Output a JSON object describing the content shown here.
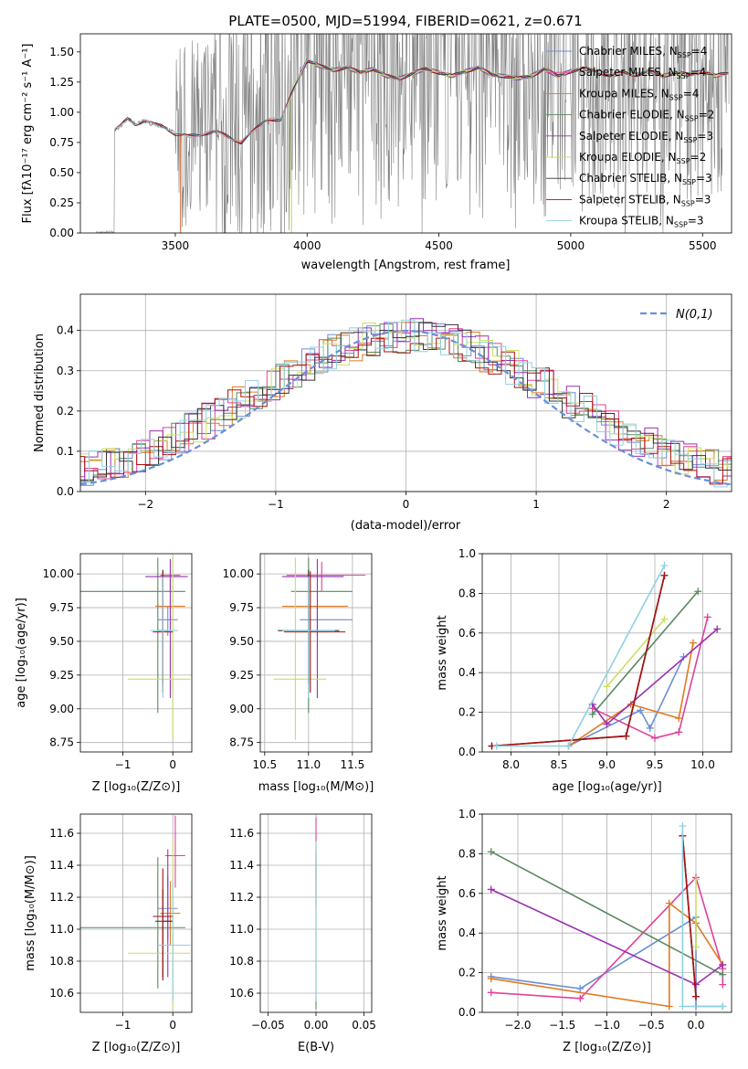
{
  "figure": {
    "title": "PLATE=0500, MJD=51994, FIBERID=0621, z=0.671"
  },
  "colors": {
    "Chabrier MILES": "#6b8fd6",
    "Salpeter MILES": "#e0409a",
    "Kroupa MILES": "#e07a1f",
    "Chabrier ELODIE": "#5a8a60",
    "Salpeter ELODIE": "#9b30b0",
    "Kroupa ELODIE": "#c8e060",
    "Chabrier STELIB": "#333333",
    "Salpeter STELIB": "#aa1010",
    "Kroupa STELIB": "#90d0e0",
    "gauss": "#6a8fd8",
    "data": "#808080"
  },
  "chart_data": [
    {
      "id": "spectrum",
      "type": "line",
      "title": "PLATE=0500, MJD=51994, FIBERID=0621, z=0.671",
      "xlabel": "wavelength [Angstrom, rest frame]",
      "ylabel": "Flux [f",
      "xlim": [
        3140,
        5610
      ],
      "ylim": [
        0,
        1.65
      ],
      "xticks": [
        3500,
        4000,
        4500,
        5000,
        5500
      ],
      "yticks": [
        0.0,
        0.25,
        0.5,
        0.75,
        1.0,
        1.25,
        1.5
      ],
      "legend": {
        "position": "upper-right",
        "entries": [
          {
            "name": "Chabrier MILES, N",
            "n": 4,
            "key": "Chabrier MILES"
          },
          {
            "name": "Salpeter MILES, N",
            "n": 4,
            "key": "Salpeter MILES"
          },
          {
            "name": "Kroupa MILES, N",
            "n": 4,
            "key": "Kroupa MILES"
          },
          {
            "name": "Chabrier ELODIE, N",
            "n": 2,
            "key": "Chabrier ELODIE"
          },
          {
            "name": "Salpeter ELODIE, N",
            "n": 3,
            "key": "Salpeter ELODIE"
          },
          {
            "name": "Kroupa ELODIE, N",
            "n": 2,
            "key": "Kroupa ELODIE"
          },
          {
            "name": "Chabrier STELIB, N",
            "n": 3,
            "key": "Chabrier STELIB"
          },
          {
            "name": "Salpeter STELIB, N",
            "n": 3,
            "key": "Salpeter STELIB"
          },
          {
            "name": "Kroupa STELIB, N",
            "n": 3,
            "key": "Kroupa STELIB"
          }
        ]
      },
      "model_curve": {
        "x": [
          3270,
          3290,
          3320,
          3350,
          3380,
          3420,
          3460,
          3500,
          3550,
          3600,
          3650,
          3700,
          3750,
          3800,
          3850,
          3900,
          3950,
          4000,
          4050,
          4100,
          4150,
          4200,
          4250,
          4300,
          4350,
          4400,
          4450,
          4500,
          4550,
          4600,
          4650,
          4700,
          4750,
          4800,
          4850,
          4900,
          4950,
          5000,
          5050,
          5100,
          5150,
          5200,
          5250,
          5300,
          5350,
          5400,
          5450,
          5500,
          5550,
          5600
        ],
        "y": [
          0.85,
          0.88,
          0.95,
          0.9,
          0.93,
          0.9,
          0.88,
          0.82,
          0.8,
          0.82,
          0.84,
          0.8,
          0.75,
          0.85,
          0.95,
          0.93,
          1.2,
          1.43,
          1.38,
          1.35,
          1.37,
          1.33,
          1.36,
          1.3,
          1.28,
          1.32,
          1.36,
          1.33,
          1.3,
          1.34,
          1.37,
          1.31,
          1.3,
          1.28,
          1.3,
          1.36,
          1.3,
          1.34,
          1.36,
          1.34,
          1.3,
          1.33,
          1.31,
          1.34,
          1.3,
          1.33,
          1.31,
          1.34,
          1.3,
          1.33
        ]
      }
    },
    {
      "id": "residuals",
      "type": "line",
      "xlabel": "(data-model)/error",
      "ylabel": "Normed distribution",
      "xlim": [
        -2.5,
        2.5
      ],
      "ylim": [
        0,
        0.49
      ],
      "xticks": [
        -2,
        -1,
        0,
        1,
        2
      ],
      "yticks": [
        0.0,
        0.1,
        0.2,
        0.3,
        0.4
      ],
      "legend": {
        "position": "upper-right",
        "entries": [
          {
            "name": "N(0,1)",
            "key": "gauss"
          }
        ]
      }
    },
    {
      "id": "age_vs_Z",
      "type": "scatter",
      "xlabel": "Z",
      "ylabel": "age",
      "xlim": [
        -1.85,
        0.38
      ],
      "ylim": [
        8.68,
        10.15
      ],
      "xticks": [
        -1,
        0
      ],
      "yticks": [
        8.75,
        9.0,
        9.25,
        9.5,
        9.75,
        10.0
      ],
      "points": [
        {
          "key": "Chabrier MILES",
          "x": -0.1,
          "xerr": [
            0.2,
            0.2
          ],
          "y": 9.66,
          "yerr": [
            0.12,
            0.1
          ]
        },
        {
          "key": "Salpeter MILES",
          "x": -0.05,
          "xerr": [
            0.2,
            0.2
          ],
          "y": 9.99,
          "yerr": [
            0.12,
            0.1
          ]
        },
        {
          "key": "Kroupa MILES",
          "x": -0.05,
          "xerr": [
            0.3,
            0.3
          ],
          "y": 9.76,
          "yerr": [
            0.2,
            0.2
          ]
        },
        {
          "key": "Chabrier ELODIE",
          "x": -0.3,
          "xerr": [
            1.55,
            0.55
          ],
          "y": 9.87,
          "yerr": [
            0.9,
            0.25
          ]
        },
        {
          "key": "Salpeter ELODIE",
          "x": -0.05,
          "xerr": [
            0.5,
            0.35
          ],
          "y": 9.98,
          "yerr": [
            0.9,
            0.13
          ]
        },
        {
          "key": "Kroupa ELODIE",
          "x": 0.0,
          "xerr": [
            0.9,
            0.35
          ],
          "y": 9.22,
          "yerr": [
            0.45,
            0.9
          ]
        },
        {
          "key": "Chabrier STELIB",
          "x": -0.2,
          "xerr": [
            0.1,
            0.1
          ],
          "y": 9.58,
          "yerr": [
            0.4,
            0.45
          ]
        },
        {
          "key": "Salpeter STELIB",
          "x": -0.2,
          "xerr": [
            0.2,
            0.2
          ],
          "y": 9.57,
          "yerr": [
            0.45,
            0.45
          ]
        },
        {
          "key": "Kroupa STELIB",
          "x": -0.2,
          "xerr": [
            0.25,
            0.3
          ],
          "y": 9.58,
          "yerr": [
            0.5,
            0.4
          ]
        }
      ]
    },
    {
      "id": "age_vs_mass",
      "type": "scatter",
      "xlabel": "mass",
      "ylabel": "",
      "xlim": [
        10.45,
        11.72
      ],
      "ylim": [
        8.68,
        10.15
      ],
      "xticks": [
        10.5,
        11.0,
        11.5
      ],
      "yticks": [
        8.75,
        9.0,
        9.25,
        9.5,
        9.75,
        10.0
      ],
      "points": [
        {
          "key": "Chabrier MILES",
          "x": 11.1,
          "xerr": [
            0.2,
            0.4
          ],
          "y": 9.66,
          "yerr": [
            0.12,
            0.1
          ]
        },
        {
          "key": "Salpeter MILES",
          "x": 11.15,
          "xerr": [
            0.4,
            0.5
          ],
          "y": 9.99,
          "yerr": [
            0.12,
            0.1
          ]
        },
        {
          "key": "Kroupa MILES",
          "x": 11.0,
          "xerr": [
            0.3,
            0.45
          ],
          "y": 9.76,
          "yerr": [
            0.2,
            0.2
          ]
        },
        {
          "key": "Chabrier ELODIE",
          "x": 11.0,
          "xerr": [
            0.2,
            0.5
          ],
          "y": 9.87,
          "yerr": [
            0.9,
            0.25
          ]
        },
        {
          "key": "Salpeter ELODIE",
          "x": 11.1,
          "xerr": [
            0.4,
            0.3
          ],
          "y": 9.98,
          "yerr": [
            0.9,
            0.13
          ]
        },
        {
          "key": "Kroupa ELODIE",
          "x": 10.85,
          "xerr": [
            0.25,
            0.35
          ],
          "y": 9.22,
          "yerr": [
            0.45,
            0.9
          ]
        },
        {
          "key": "Chabrier STELIB",
          "x": 11.0,
          "xerr": [
            0.35,
            0.35
          ],
          "y": 9.58,
          "yerr": [
            0.4,
            0.45
          ]
        },
        {
          "key": "Salpeter STELIB",
          "x": 11.02,
          "xerr": [
            0.3,
            0.4
          ],
          "y": 9.57,
          "yerr": [
            0.45,
            0.45
          ]
        },
        {
          "key": "Kroupa STELIB",
          "x": 11.0,
          "xerr": [
            0.3,
            0.3
          ],
          "y": 9.58,
          "yerr": [
            0.5,
            0.4
          ]
        }
      ]
    },
    {
      "id": "weight_vs_age",
      "type": "line",
      "xlabel": "age",
      "ylabel": "mass weight",
      "xlim": [
        7.7,
        10.3
      ],
      "ylim": [
        0,
        1.0
      ],
      "xticks": [
        8.0,
        8.5,
        9.0,
        9.5,
        10.0
      ],
      "yticks": [
        0.0,
        0.2,
        0.4,
        0.6,
        0.8,
        1.0
      ],
      "series": [
        {
          "key": "Chabrier MILES",
          "x": [
            8.6,
            9.35,
            9.45,
            9.8
          ],
          "y": [
            0.03,
            0.21,
            0.12,
            0.48
          ]
        },
        {
          "key": "Salpeter MILES",
          "x": [
            8.85,
            9.5,
            9.75,
            10.05
          ],
          "y": [
            0.22,
            0.07,
            0.1,
            0.68
          ]
        },
        {
          "key": "Kroupa MILES",
          "x": [
            8.6,
            9.25,
            9.75,
            9.9
          ],
          "y": [
            0.03,
            0.24,
            0.17,
            0.55
          ]
        },
        {
          "key": "Chabrier ELODIE",
          "x": [
            8.85,
            9.95
          ],
          "y": [
            0.19,
            0.81
          ]
        },
        {
          "key": "Salpeter ELODIE",
          "x": [
            8.85,
            9.0,
            10.15
          ],
          "y": [
            0.24,
            0.14,
            0.62
          ]
        },
        {
          "key": "Kroupa ELODIE",
          "x": [
            9.0,
            9.6
          ],
          "y": [
            0.33,
            0.67
          ]
        },
        {
          "key": "Chabrier STELIB",
          "x": [
            7.8,
            9.2,
            9.6
          ],
          "y": [
            0.03,
            0.08,
            0.89
          ]
        },
        {
          "key": "Salpeter STELIB",
          "x": [
            7.8,
            9.2,
            9.6
          ],
          "y": [
            0.03,
            0.08,
            0.89
          ]
        },
        {
          "key": "Kroupa STELIB",
          "x": [
            7.85,
            8.6,
            9.6
          ],
          "y": [
            0.03,
            0.03,
            0.94
          ]
        }
      ]
    },
    {
      "id": "mass_vs_Z",
      "type": "scatter",
      "xlabel": "Z",
      "ylabel": "mass",
      "xlim": [
        -1.85,
        0.38
      ],
      "ylim": [
        10.48,
        11.72
      ],
      "xticks": [
        -1,
        0
      ],
      "yticks": [
        10.6,
        10.8,
        11.0,
        11.2,
        11.4,
        11.6
      ],
      "points": [
        {
          "key": "Chabrier MILES",
          "x": -0.1,
          "xerr": [
            0.2,
            0.2
          ],
          "y": 11.13,
          "yerr": [
            0.2,
            0.2
          ]
        },
        {
          "key": "Salpeter MILES",
          "x": 0.05,
          "xerr": [
            0.2,
            0.2
          ],
          "y": 11.46,
          "yerr": [
            0.2,
            0.25
          ]
        },
        {
          "key": "Kroupa MILES",
          "x": -0.05,
          "xerr": [
            0.2,
            0.2
          ],
          "y": 11.1,
          "yerr": [
            0.2,
            0.2
          ]
        },
        {
          "key": "Chabrier ELODIE",
          "x": -0.3,
          "xerr": [
            1.55,
            0.55
          ],
          "y": 11.01,
          "yerr": [
            0.38,
            0.44
          ]
        },
        {
          "key": "Salpeter ELODIE",
          "x": -0.1,
          "xerr": [
            0.1,
            0.1
          ],
          "y": 11.05,
          "yerr": [
            0.35,
            0.45
          ]
        },
        {
          "key": "Kroupa ELODIE",
          "x": 0.0,
          "xerr": [
            0.9,
            0.35
          ],
          "y": 10.85,
          "yerr": [
            0.35,
            0.7
          ]
        },
        {
          "key": "Chabrier STELIB",
          "x": -0.2,
          "xerr": [
            0.15,
            0.2
          ],
          "y": 11.05,
          "yerr": [
            0.35,
            0.2
          ]
        },
        {
          "key": "Salpeter STELIB",
          "x": -0.2,
          "xerr": [
            0.2,
            0.2
          ],
          "y": 11.08,
          "yerr": [
            0.4,
            0.3
          ]
        },
        {
          "key": "Kroupa STELIB",
          "x": 0.0,
          "xerr": [
            0.3,
            0.35
          ],
          "y": 10.9,
          "yerr": [
            0.35,
            0.4
          ]
        }
      ]
    },
    {
      "id": "mass_vs_ebv",
      "type": "scatter",
      "xlabel": "E(B-V)",
      "ylabel": "",
      "xlim": [
        -0.058,
        0.058
      ],
      "ylim": [
        10.48,
        11.72
      ],
      "xticks": [
        -0.05,
        0.0,
        0.05
      ],
      "yticks": [
        10.6,
        10.8,
        11.0,
        11.2,
        11.4,
        11.6
      ],
      "points": [
        {
          "key": "Salpeter MILES",
          "x": 0.0,
          "xerr": [
            0,
            0
          ],
          "y": 11.5,
          "yerr": [
            0.2,
            0.2
          ]
        },
        {
          "key": "Chabrier ELODIE",
          "x": 0.0,
          "xerr": [
            0,
            0
          ],
          "y": 11.0,
          "yerr": [
            0.5,
            0.45
          ]
        },
        {
          "key": "Salpeter STELIB",
          "x": 0.0,
          "xerr": [
            0,
            0
          ],
          "y": 11.35,
          "yerr": [
            0.2,
            0.15
          ]
        },
        {
          "key": "Kroupa STELIB",
          "x": 0.0,
          "xerr": [
            0,
            0
          ],
          "y": 11.0,
          "yerr": [
            0.45,
            0.55
          ]
        }
      ]
    },
    {
      "id": "weight_vs_Z",
      "type": "line",
      "xlabel": "Z",
      "ylabel": "mass weight",
      "xlim": [
        -2.4,
        0.4
      ],
      "ylim": [
        0,
        1.0
      ],
      "xticks": [
        -2.0,
        -1.5,
        -1.0,
        -0.5,
        0.0
      ],
      "yticks": [
        0.0,
        0.2,
        0.4,
        0.6,
        0.8,
        1.0
      ],
      "series": [
        {
          "key": "Chabrier MILES",
          "x": [
            -2.3,
            -1.3,
            0.0,
            0.0,
            0.3
          ],
          "y": [
            0.18,
            0.12,
            0.48,
            0.03,
            0.03
          ]
        },
        {
          "key": "Salpeter MILES",
          "x": [
            -2.3,
            -1.3,
            0.0,
            0.3,
            0.3
          ],
          "y": [
            0.1,
            0.07,
            0.68,
            0.22,
            0.14
          ]
        },
        {
          "key": "Kroupa MILES",
          "x": [
            -2.3,
            -0.3,
            -0.3,
            0.0,
            0.3
          ],
          "y": [
            0.17,
            0.03,
            0.55,
            0.45,
            0.24
          ]
        },
        {
          "key": "Chabrier ELODIE",
          "x": [
            -2.3,
            0.3
          ],
          "y": [
            0.81,
            0.19
          ]
        },
        {
          "key": "Salpeter ELODIE",
          "x": [
            -2.3,
            0.0,
            0.3
          ],
          "y": [
            0.62,
            0.14,
            0.24
          ]
        },
        {
          "key": "Kroupa ELODIE",
          "x": [
            0.0,
            0.0
          ],
          "y": [
            0.67,
            0.33
          ]
        },
        {
          "key": "Chabrier STELIB",
          "x": [
            -0.15,
            0.0
          ],
          "y": [
            0.89,
            0.08
          ]
        },
        {
          "key": "Salpeter STELIB",
          "x": [
            -0.15,
            0.0
          ],
          "y": [
            0.89,
            0.08
          ]
        },
        {
          "key": "Kroupa STELIB",
          "x": [
            -0.15,
            -0.15,
            0.3
          ],
          "y": [
            0.94,
            0.03,
            0.03
          ]
        }
      ]
    }
  ]
}
